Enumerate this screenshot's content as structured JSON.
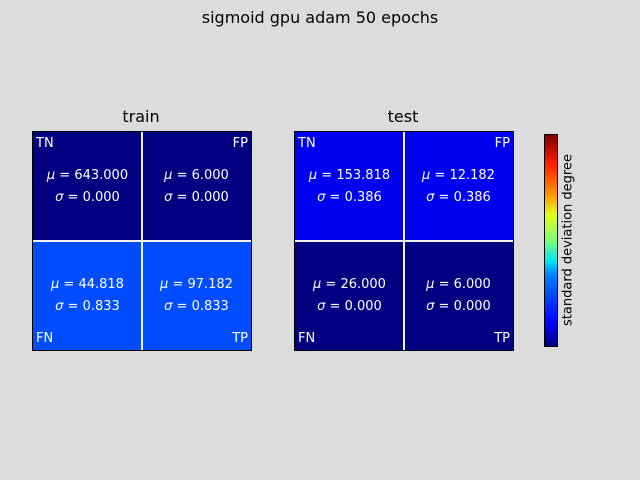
{
  "chart_data": {
    "type": "heatmap",
    "title": "sigmoid gpu adam 50 epochs",
    "colorbar_label": "standard deviation degree",
    "colormap": "jet",
    "panels": [
      {
        "title": "train",
        "cells": [
          {
            "label": "TN",
            "mu": "643.000",
            "sigma": "0.000",
            "color": "#000080"
          },
          {
            "label": "FP",
            "mu": "6.000",
            "sigma": "0.000",
            "color": "#000080"
          },
          {
            "label": "FN",
            "mu": "44.818",
            "sigma": "0.833",
            "color": "#004cff"
          },
          {
            "label": "TP",
            "mu": "97.182",
            "sigma": "0.833",
            "color": "#004cff"
          }
        ]
      },
      {
        "title": "test",
        "cells": [
          {
            "label": "TN",
            "mu": "153.818",
            "sigma": "0.386",
            "color": "#0000f1"
          },
          {
            "label": "FP",
            "mu": "12.182",
            "sigma": "0.386",
            "color": "#0000f1"
          },
          {
            "label": "FN",
            "mu": "26.000",
            "sigma": "0.000",
            "color": "#000080"
          },
          {
            "label": "TP",
            "mu": "6.000",
            "sigma": "0.000",
            "color": "#000080"
          }
        ]
      }
    ]
  }
}
